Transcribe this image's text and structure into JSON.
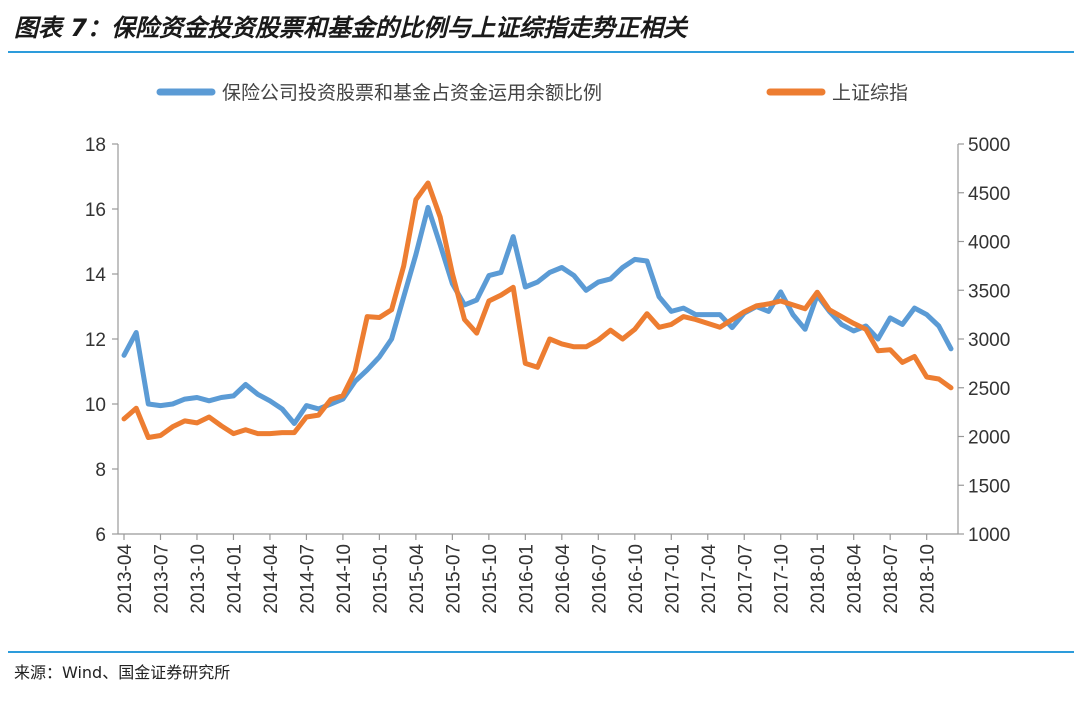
{
  "title": "图表 7：保险资金投资股票和基金的比例与上证综指走势正相关",
  "source": "来源：Wind、国金证券研究所",
  "colors": {
    "series_blue": "#5b9bd5",
    "series_orange": "#ed7d31",
    "rule": "#2d9cdb",
    "axis": "#999999"
  },
  "chart_data": {
    "type": "line",
    "legend_position": "top",
    "grid": false,
    "x_tick_labels": [
      "2013-04",
      "2013-07",
      "2013-10",
      "2014-01",
      "2014-04",
      "2014-07",
      "2014-10",
      "2015-01",
      "2015-04",
      "2015-07",
      "2015-10",
      "2016-01",
      "2016-04",
      "2016-07",
      "2016-10",
      "2017-01",
      "2017-04",
      "2017-07",
      "2017-10",
      "2018-01",
      "2018-04",
      "2018-07",
      "2018-10"
    ],
    "x_tick_months": [
      0,
      3,
      6,
      9,
      12,
      15,
      18,
      21,
      24,
      27,
      30,
      33,
      36,
      39,
      42,
      45,
      48,
      51,
      54,
      57,
      60,
      63,
      66
    ],
    "y_left": {
      "min": 6,
      "max": 18,
      "ticks": [
        6,
        8,
        10,
        12,
        14,
        16,
        18
      ]
    },
    "y_right": {
      "min": 1000,
      "max": 5000,
      "ticks": [
        1000,
        1500,
        2000,
        2500,
        3000,
        3500,
        4000,
        4500,
        5000
      ]
    },
    "series": [
      {
        "name": "保险公司投资股票和基金占资金运用余额比例",
        "axis": "left",
        "color": "#5b9bd5",
        "x_months": [
          0,
          1,
          2,
          3,
          4,
          5,
          6,
          7,
          8,
          9,
          10,
          11,
          12,
          13,
          14,
          15,
          16,
          17,
          18,
          19,
          20,
          21,
          22,
          23,
          24,
          25,
          26,
          27,
          28,
          29,
          30,
          31,
          32,
          33,
          34,
          35,
          36,
          37,
          38,
          39,
          40,
          41,
          42,
          43,
          44,
          45,
          46,
          47,
          48,
          49,
          50,
          51,
          52,
          53,
          54,
          55,
          56,
          57,
          58,
          59,
          60,
          61,
          62,
          63,
          64,
          65,
          66,
          67,
          68
        ],
        "values": [
          11.5,
          12.2,
          10.0,
          9.95,
          10.0,
          10.15,
          10.2,
          10.1,
          10.2,
          10.25,
          10.6,
          10.3,
          10.1,
          9.85,
          9.4,
          9.95,
          9.85,
          10.0,
          10.15,
          10.7,
          11.05,
          11.45,
          12.0,
          13.3,
          14.6,
          16.05,
          14.9,
          13.7,
          13.05,
          13.2,
          13.95,
          14.05,
          15.15,
          13.6,
          13.75,
          14.05,
          14.2,
          13.95,
          13.5,
          13.75,
          13.85,
          14.2,
          14.45,
          14.4,
          13.3,
          12.85,
          12.95,
          12.75,
          12.75,
          12.75,
          12.35,
          12.8,
          13.0,
          12.85,
          13.45,
          12.75,
          12.3,
          13.35,
          12.85,
          12.45,
          12.25,
          12.4,
          12.0,
          12.65,
          12.45,
          12.95,
          12.75,
          12.4,
          11.7
        ]
      },
      {
        "name": "上证综指",
        "axis": "right",
        "color": "#ed7d31",
        "x_months": [
          0,
          1,
          2,
          3,
          4,
          5,
          6,
          7,
          8,
          9,
          10,
          11,
          12,
          13,
          14,
          15,
          16,
          17,
          18,
          19,
          20,
          21,
          22,
          23,
          24,
          25,
          26,
          27,
          28,
          29,
          30,
          31,
          32,
          33,
          34,
          35,
          36,
          37,
          38,
          39,
          40,
          41,
          42,
          43,
          44,
          45,
          46,
          47,
          48,
          49,
          50,
          51,
          52,
          53,
          54,
          55,
          56,
          57,
          58,
          59,
          60,
          61,
          62,
          63,
          64,
          65,
          66,
          67,
          68
        ],
        "values": [
          2180,
          2290,
          1990,
          2010,
          2100,
          2160,
          2140,
          2200,
          2110,
          2030,
          2070,
          2030,
          2030,
          2040,
          2040,
          2200,
          2220,
          2380,
          2420,
          2670,
          3230,
          3220,
          3300,
          3750,
          4430,
          4600,
          4250,
          3670,
          3200,
          3060,
          3390,
          3450,
          3530,
          2750,
          2710,
          3000,
          2950,
          2920,
          2920,
          2990,
          3090,
          3000,
          3100,
          3260,
          3120,
          3150,
          3230,
          3200,
          3160,
          3120,
          3200,
          3280,
          3340,
          3360,
          3390,
          3350,
          3310,
          3480,
          3300,
          3230,
          3160,
          3100,
          2880,
          2890,
          2760,
          2820,
          2610,
          2590,
          2500
        ]
      }
    ]
  }
}
